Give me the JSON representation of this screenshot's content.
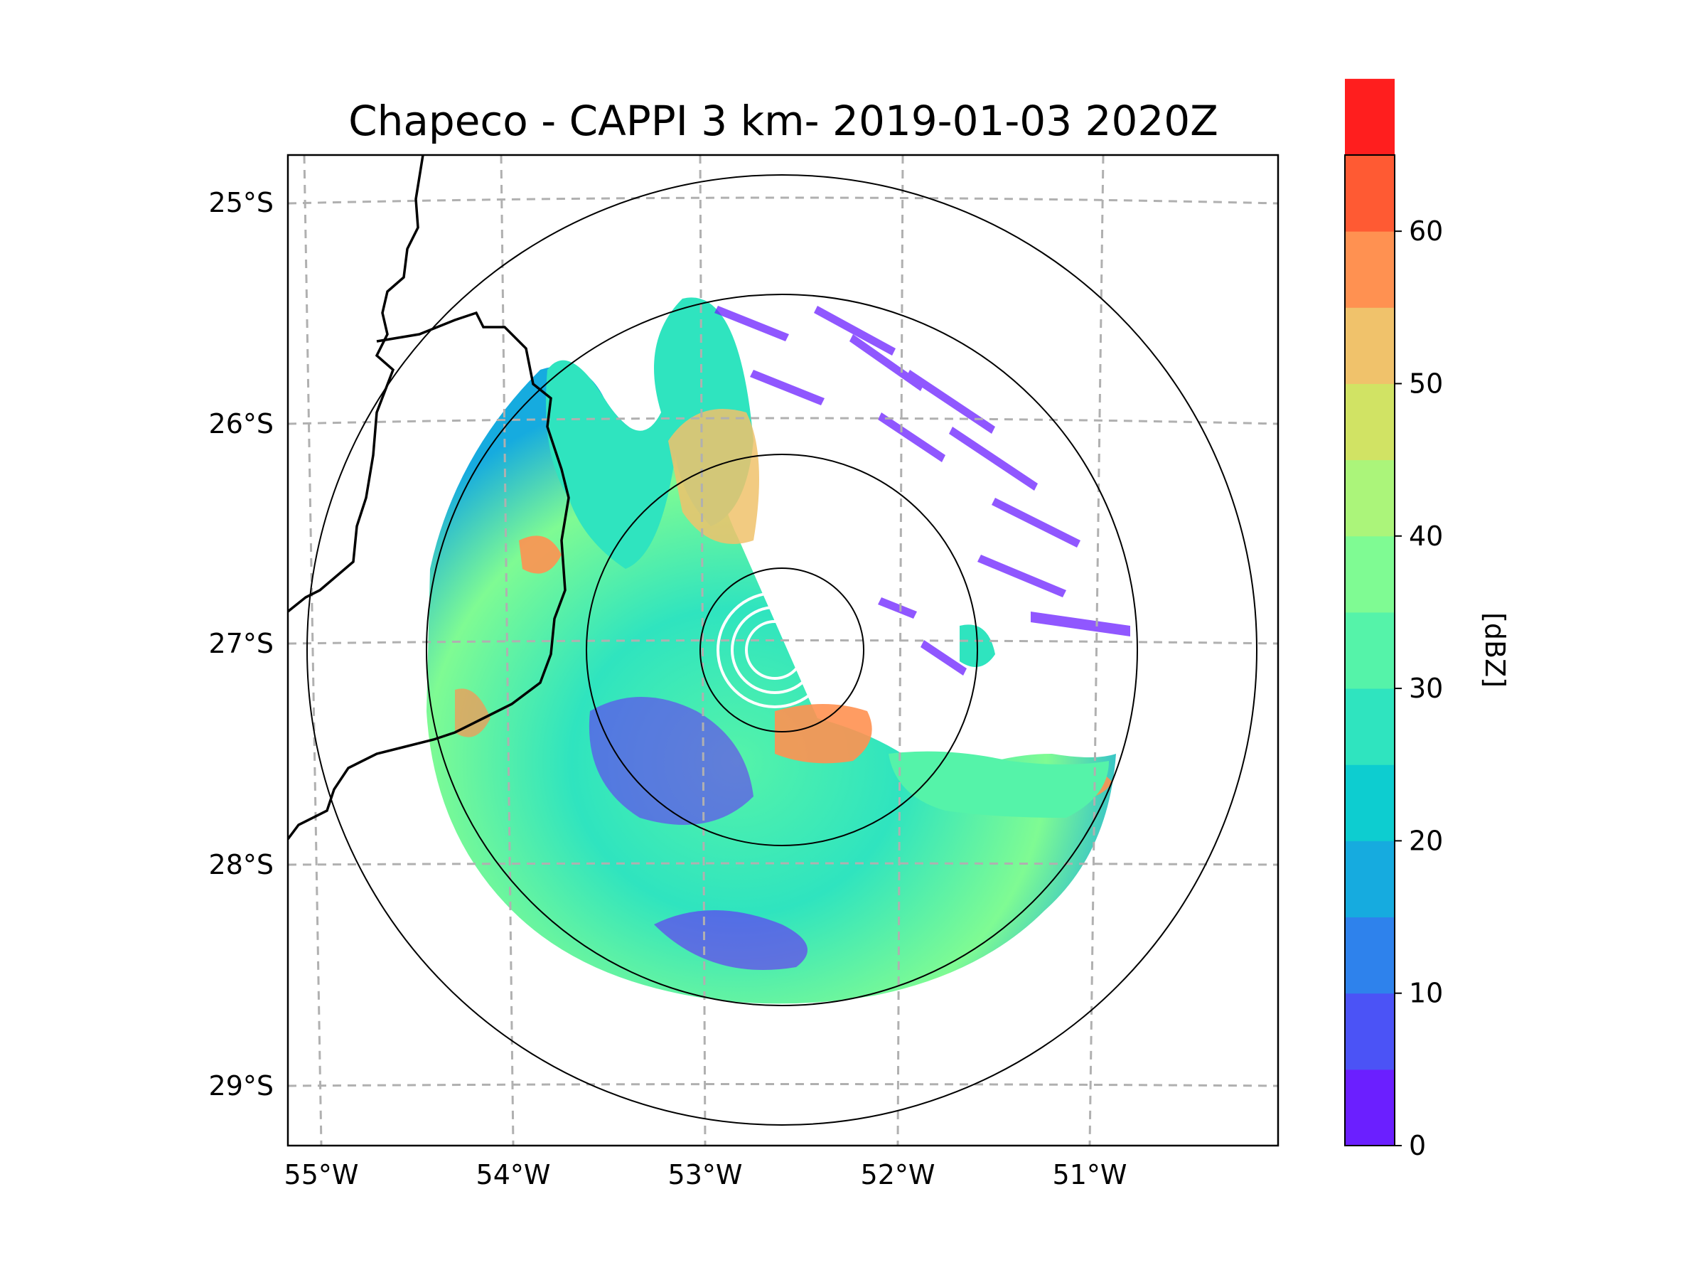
{
  "title": "Chapeco - CAPPI 3 km- 2019-01-03 2020Z",
  "map": {
    "lon_labels": [
      "55°W",
      "54°W",
      "53°W",
      "52°W",
      "51°W"
    ],
    "lat_labels": [
      "25°S",
      "26°S",
      "27°S",
      "28°S",
      "29°S"
    ],
    "radar_site": {
      "lon": -52.6,
      "lat": -27.03
    },
    "range_rings_km": [
      50,
      100,
      150,
      200,
      250
    ]
  },
  "colorbar": {
    "label": "[dBZ]",
    "tick_labels": [
      "0",
      "10",
      "20",
      "30",
      "40",
      "50",
      "60"
    ],
    "min": 0,
    "max": 65,
    "step": 5,
    "colors": [
      "#6b1fff",
      "#4b53f6",
      "#2e82ec",
      "#16abdf",
      "#0dcdd0",
      "#2fe4bf",
      "#55f3a9",
      "#7ffb93",
      "#abf57a",
      "#d1e364",
      "#f0c26b",
      "#ff9151",
      "#ff5a33",
      "#ff1e1e"
    ]
  },
  "colors": {
    "background": "#ffffff",
    "grid": "#b0b0b0",
    "coastline": "#000000"
  }
}
